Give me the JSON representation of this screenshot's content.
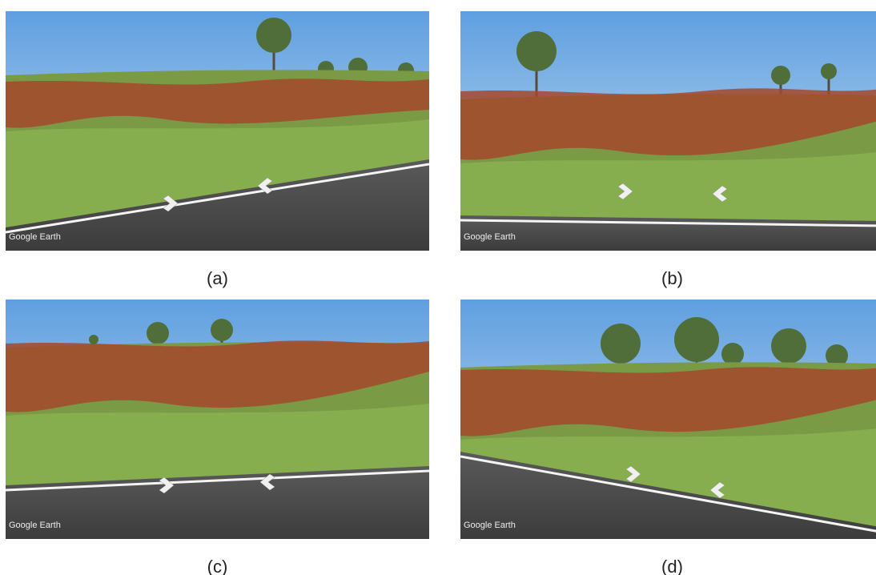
{
  "panels": [
    {
      "caption": "(a)",
      "watermark": "Google Earth"
    },
    {
      "caption": "(b)",
      "watermark": "Google Earth"
    },
    {
      "caption": "(c)",
      "watermark": "Google Earth"
    },
    {
      "caption": "(d)",
      "watermark": "Google Earth"
    }
  ]
}
